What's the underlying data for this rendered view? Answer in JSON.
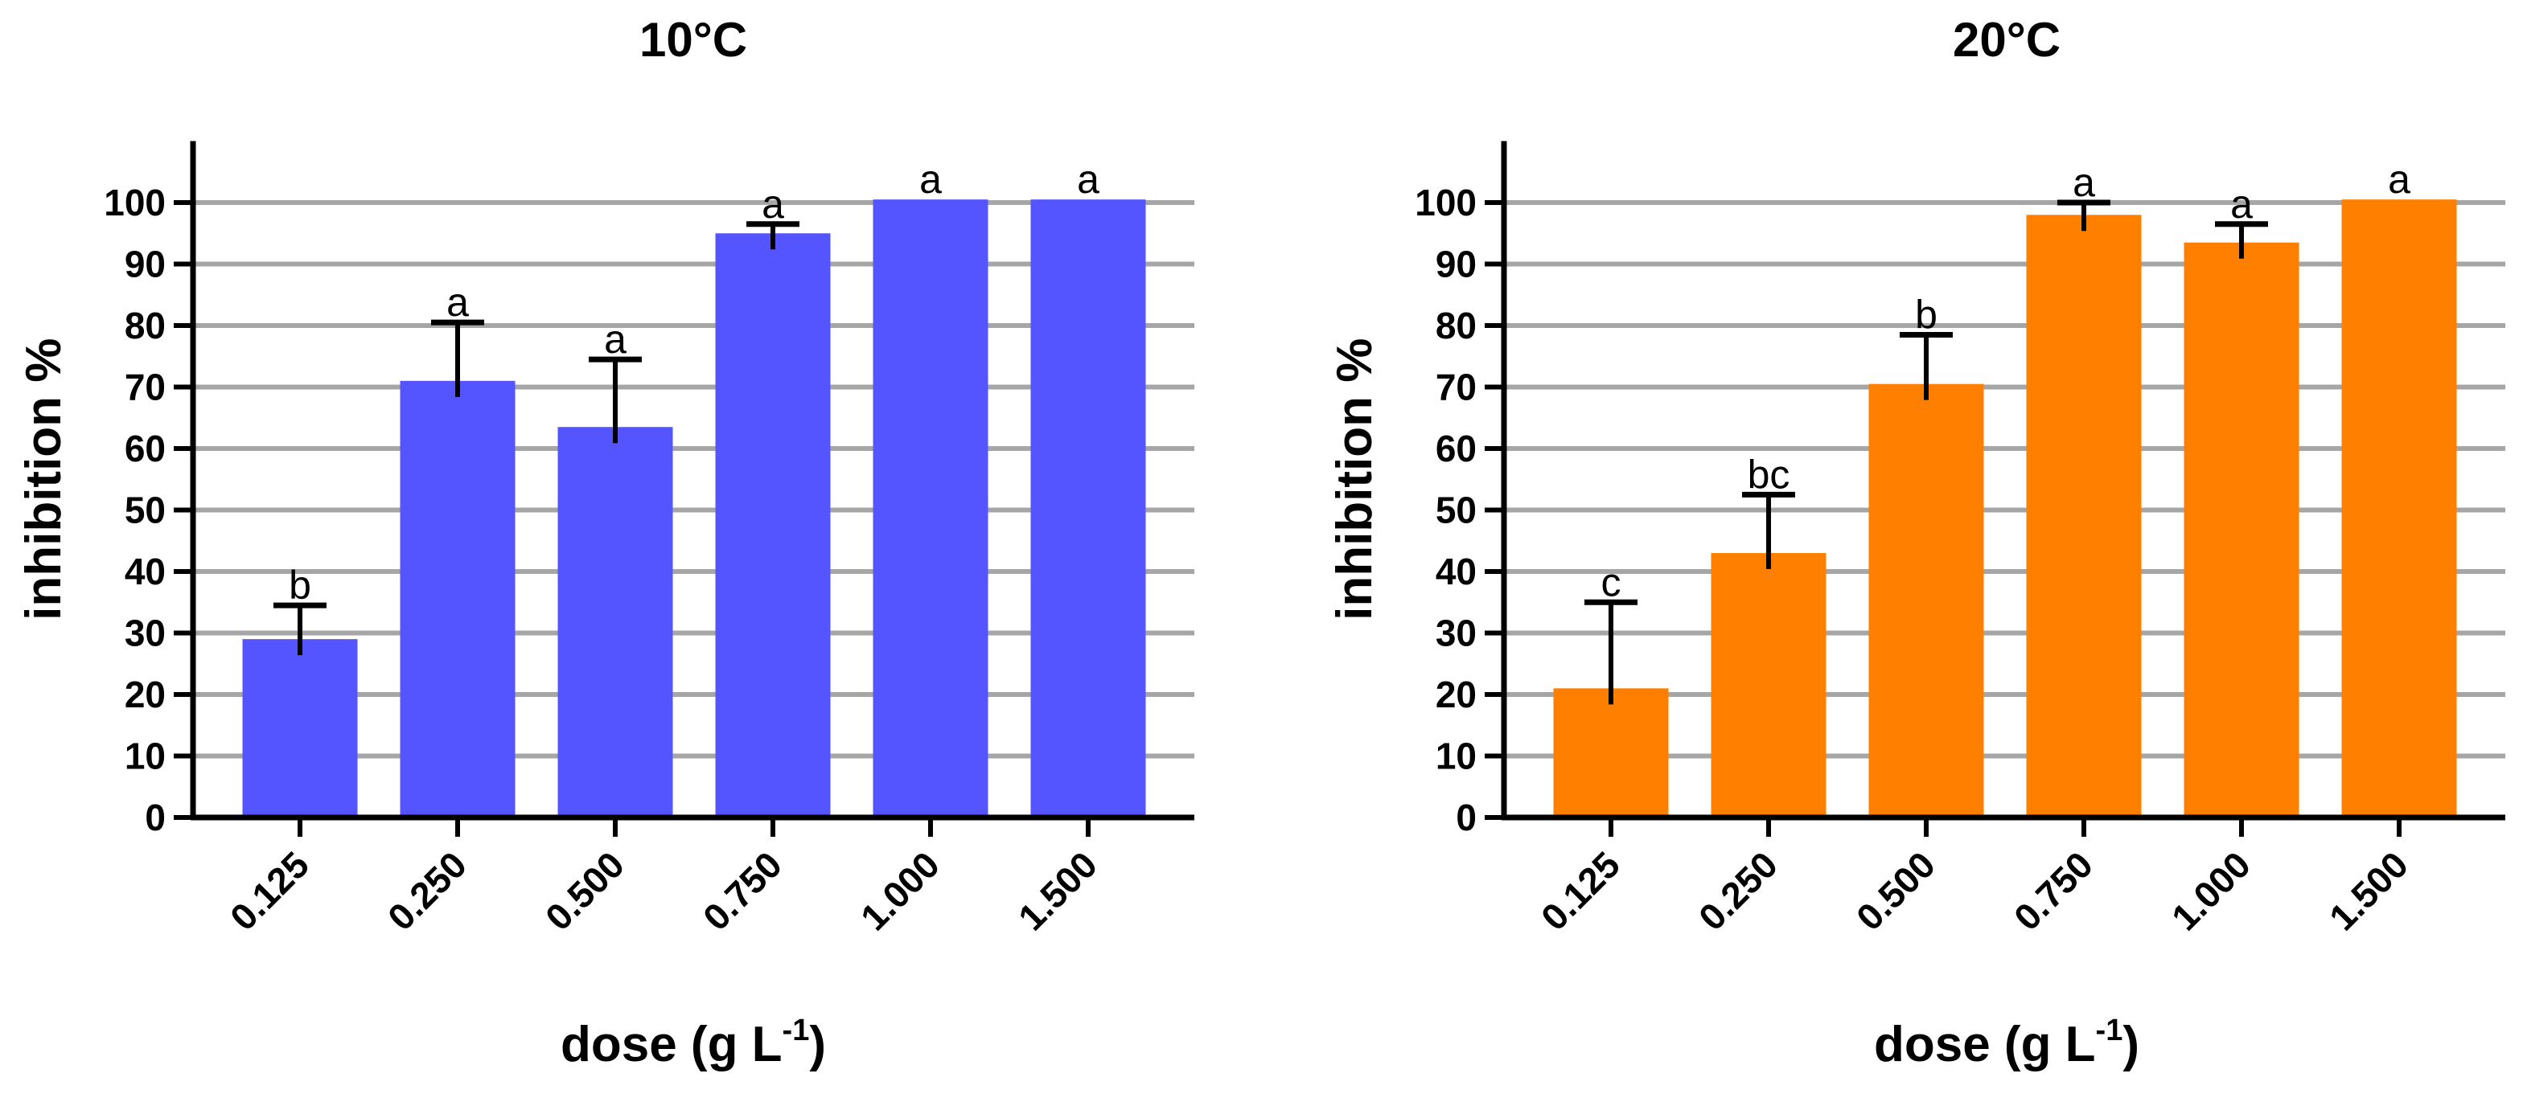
{
  "chart_data": [
    {
      "type": "bar",
      "title": "10°C",
      "ylabel": "inhibition %",
      "xlabel": "dose (g L",
      "xlabel_sup": "-1",
      "xlabel_close": ")",
      "ylim": [
        0,
        110
      ],
      "yticks": [
        0,
        10,
        20,
        30,
        40,
        50,
        60,
        70,
        80,
        90,
        100
      ],
      "grid": true,
      "color": "#5555ff",
      "categories": [
        "0.125",
        "0.250",
        "0.500",
        "0.750",
        "1.000",
        "1.500"
      ],
      "values": [
        29,
        71,
        63.5,
        95,
        100.5,
        100.5
      ],
      "errors": [
        5.5,
        9.5,
        11,
        1.5,
        0,
        0
      ],
      "letters": [
        "b",
        "a",
        "a",
        "a",
        "a",
        "a"
      ]
    },
    {
      "type": "bar",
      "title": "20°C",
      "ylabel": "inhibition %",
      "xlabel": "dose (g L",
      "xlabel_sup": "-1",
      "xlabel_close": ")",
      "ylim": [
        0,
        110
      ],
      "yticks": [
        0,
        10,
        20,
        30,
        40,
        50,
        60,
        70,
        80,
        90,
        100
      ],
      "grid": true,
      "color": "#ff8000",
      "categories": [
        "0.125",
        "0.250",
        "0.500",
        "0.750",
        "1.000",
        "1.500"
      ],
      "values": [
        21,
        43,
        70.5,
        98,
        93.5,
        100.5
      ],
      "errors": [
        14,
        9.5,
        8,
        2,
        3,
        0
      ],
      "letters": [
        "c",
        "bc",
        "b",
        "a",
        "a",
        "a"
      ]
    }
  ]
}
